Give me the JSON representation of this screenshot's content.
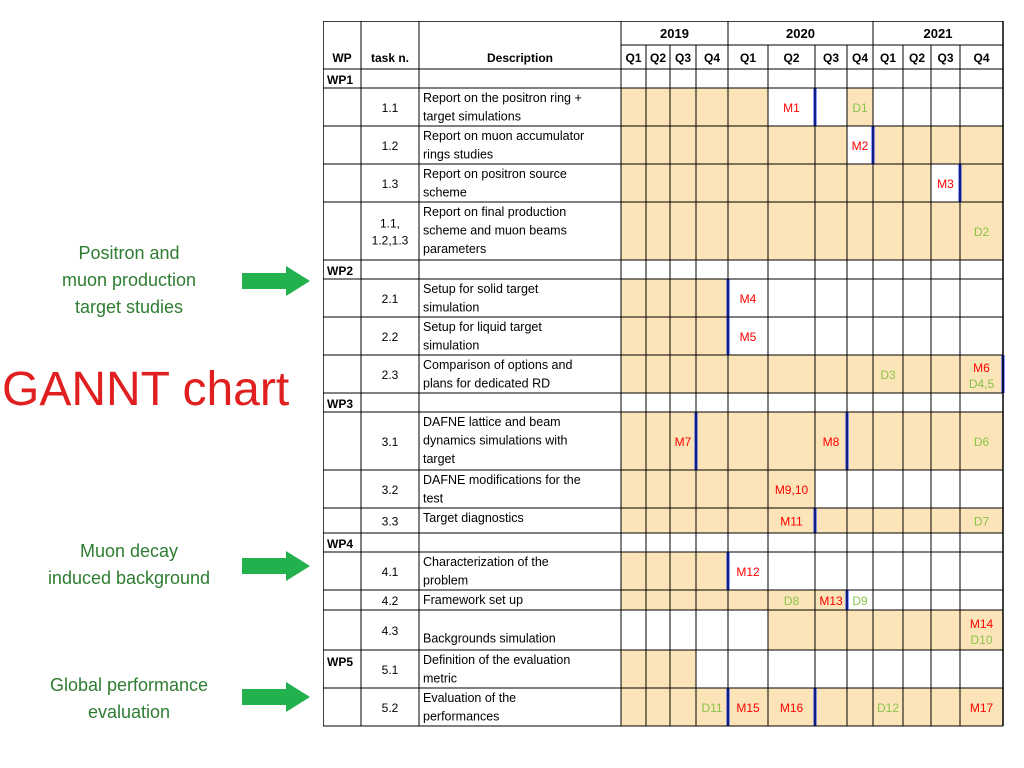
{
  "slide": {
    "title": "GANNT chart",
    "callouts": [
      {
        "lines": [
          "Positron and",
          "muon production",
          "target studies"
        ]
      },
      {
        "lines": [
          "Muon decay",
          "induced background"
        ]
      },
      {
        "lines": [
          "Global performance",
          "evaluation"
        ]
      }
    ],
    "accent_color": "#e02020",
    "callout_color": "#2e7d32",
    "arrow_color": "#22b14c"
  },
  "chart_data": {
    "type": "table",
    "headers": {
      "wp": "WP",
      "task": "task n.",
      "description": "Description"
    },
    "years": [
      {
        "label": "2019",
        "quarters": [
          "Q1",
          "Q2",
          "Q3",
          "Q4"
        ]
      },
      {
        "label": "2020",
        "quarters": [
          "Q1",
          "Q2",
          "Q3",
          "Q4"
        ]
      },
      {
        "label": "2021",
        "quarters": [
          "Q1",
          "Q2",
          "Q3",
          "Q4"
        ]
      }
    ],
    "colors": {
      "active": "#fbe5b8",
      "milestone": "#ff0000",
      "deliverable": "#8bc34a",
      "deadline": "#1f3dff",
      "grid": "#000000"
    },
    "rows": [
      {
        "type": "wp",
        "wp": "WP1"
      },
      {
        "type": "task",
        "task": [
          "1.1"
        ],
        "desc": [
          "Report on the positron ring +",
          "target simulations"
        ],
        "active": [
          1,
          1,
          1,
          1,
          1,
          0,
          0,
          1,
          0,
          0,
          0,
          0
        ],
        "marks": [
          {
            "q": 5,
            "text": "M1",
            "kind": "M"
          },
          {
            "q": 7,
            "text": "D1",
            "kind": "D"
          }
        ],
        "deadline": 5
      },
      {
        "type": "task",
        "task": [
          "1.2"
        ],
        "desc": [
          "Report on muon accumulator",
          "rings studies"
        ],
        "active": [
          1,
          1,
          1,
          1,
          1,
          1,
          1,
          0,
          1,
          1,
          1,
          1
        ],
        "marks": [
          {
            "q": 7,
            "text": "M2",
            "kind": "M"
          }
        ],
        "deadline": 7
      },
      {
        "type": "task",
        "task": [
          "1.3"
        ],
        "desc": [
          "Report on positron source",
          "scheme"
        ],
        "active": [
          1,
          1,
          1,
          1,
          1,
          1,
          1,
          1,
          1,
          1,
          0,
          1
        ],
        "marks": [
          {
            "q": 10,
            "text": "M3",
            "kind": "M"
          }
        ],
        "deadline": 10
      },
      {
        "type": "task",
        "task": [
          "1.1,",
          "1.2,1.3"
        ],
        "desc": [
          "Report on final production",
          "scheme and muon beams",
          "parameters"
        ],
        "active": [
          1,
          1,
          1,
          1,
          1,
          1,
          1,
          1,
          1,
          1,
          1,
          1
        ],
        "marks": [
          {
            "q": 11,
            "text": "D2",
            "kind": "D"
          }
        ]
      },
      {
        "type": "wp",
        "wp": "WP2"
      },
      {
        "type": "task",
        "task": [
          "2.1"
        ],
        "desc": [
          "Setup for solid target",
          "simulation"
        ],
        "active": [
          1,
          1,
          1,
          1,
          0,
          0,
          0,
          0,
          0,
          0,
          0,
          0
        ],
        "marks": [
          {
            "q": 4,
            "text": "M4",
            "kind": "M"
          }
        ],
        "deadline": 3
      },
      {
        "type": "task",
        "task": [
          "2.2"
        ],
        "desc": [
          "Setup for liquid target",
          "simulation"
        ],
        "active": [
          1,
          1,
          1,
          1,
          0,
          0,
          0,
          0,
          0,
          0,
          0,
          0
        ],
        "marks": [
          {
            "q": 4,
            "text": "M5",
            "kind": "M"
          }
        ],
        "deadline": 3
      },
      {
        "type": "task",
        "task": [
          "2.3"
        ],
        "desc": [
          "Comparison of options and",
          "plans for dedicated RD"
        ],
        "active": [
          1,
          1,
          1,
          1,
          1,
          1,
          1,
          1,
          1,
          1,
          1,
          1
        ],
        "marks": [
          {
            "q": 8,
            "text": "D3",
            "kind": "D"
          },
          {
            "q": 11,
            "text": "M6",
            "kind": "M",
            "text2": "D4,5"
          }
        ],
        "deadline": 11
      },
      {
        "type": "wp",
        "wp": "WP3"
      },
      {
        "type": "task",
        "task": [
          "3.1"
        ],
        "desc": [
          "DAFNE lattice and beam",
          "dynamics simulations with",
          "target"
        ],
        "active": [
          1,
          1,
          1,
          1,
          1,
          1,
          1,
          1,
          1,
          1,
          1,
          1
        ],
        "marks": [
          {
            "q": 2,
            "text": "M7",
            "kind": "M"
          },
          {
            "q": 6,
            "text": "M8",
            "kind": "M"
          },
          {
            "q": 11,
            "text": "D6",
            "kind": "D"
          }
        ],
        "deadline": 2,
        "deadline2": 6
      },
      {
        "type": "task",
        "task": [
          "3.2"
        ],
        "desc": [
          "DAFNE modifications for the",
          "test"
        ],
        "active": [
          1,
          1,
          1,
          1,
          1,
          1,
          0,
          0,
          0,
          0,
          0,
          0
        ],
        "marks": [
          {
            "q": 5,
            "text": "M9,10",
            "kind": "M"
          }
        ]
      },
      {
        "type": "task",
        "task": [
          "3.3"
        ],
        "desc": [
          "Target diagnostics"
        ],
        "active": [
          1,
          1,
          1,
          1,
          1,
          1,
          1,
          1,
          1,
          1,
          1,
          1
        ],
        "marks": [
          {
            "q": 5,
            "text": "M11",
            "kind": "M"
          },
          {
            "q": 11,
            "text": "D7",
            "kind": "D"
          }
        ],
        "deadline": 5
      },
      {
        "type": "wp",
        "wp": "WP4"
      },
      {
        "type": "task",
        "task": [
          "4.1"
        ],
        "desc": [
          "Characterization of the",
          "problem"
        ],
        "active": [
          1,
          1,
          1,
          1,
          0,
          0,
          0,
          0,
          0,
          0,
          0,
          0
        ],
        "marks": [
          {
            "q": 4,
            "text": "M12",
            "kind": "M"
          }
        ],
        "deadline": 3
      },
      {
        "type": "task",
        "task": [
          "4.2"
        ],
        "desc": [
          "Framework set up"
        ],
        "active": [
          1,
          1,
          1,
          1,
          1,
          1,
          1,
          0,
          0,
          0,
          0,
          0
        ],
        "marks": [
          {
            "q": 5,
            "text": "D8",
            "kind": "D"
          },
          {
            "q": 6,
            "text": "M13",
            "kind": "M"
          },
          {
            "q": 7,
            "text": "D9",
            "kind": "D"
          }
        ],
        "deadline": 6
      },
      {
        "type": "task",
        "task": [
          "4.3"
        ],
        "desc": [
          "",
          "Backgrounds simulation"
        ],
        "active": [
          0,
          0,
          0,
          0,
          0,
          1,
          1,
          1,
          1,
          1,
          1,
          1
        ],
        "marks": [
          {
            "q": 11,
            "text": "M14",
            "kind": "M",
            "text2": "D10"
          }
        ]
      },
      {
        "type": "task",
        "wp": "WP5",
        "task": [
          "5.1"
        ],
        "desc": [
          "Definition of the evaluation",
          "metric"
        ],
        "active": [
          1,
          1,
          1,
          0,
          0,
          0,
          0,
          0,
          0,
          0,
          0,
          0
        ],
        "marks": []
      },
      {
        "type": "task",
        "task": [
          "5.2"
        ],
        "desc": [
          "Evaluation of the",
          "performances"
        ],
        "active": [
          1,
          1,
          1,
          1,
          1,
          1,
          1,
          1,
          1,
          1,
          1,
          1
        ],
        "marks": [
          {
            "q": 3,
            "text": "D11",
            "kind": "D"
          },
          {
            "q": 4,
            "text": "M15",
            "kind": "M"
          },
          {
            "q": 5,
            "text": "M16",
            "kind": "M"
          },
          {
            "q": 8,
            "text": "D12",
            "kind": "D"
          },
          {
            "q": 11,
            "text": "M17",
            "kind": "M"
          }
        ],
        "deadline": 3,
        "deadline2": 5
      }
    ]
  }
}
